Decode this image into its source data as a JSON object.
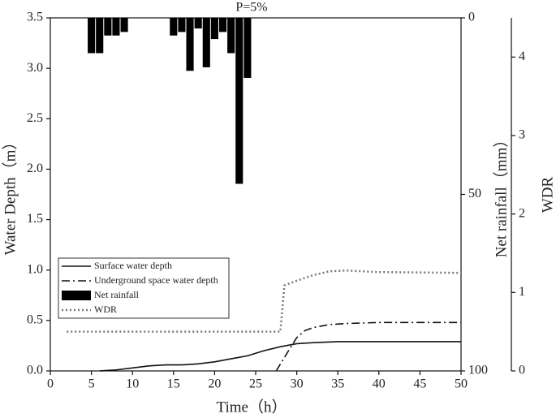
{
  "chart_data": {
    "type": "line",
    "title": "P=5%",
    "x_label": "Time（h）",
    "y_label": "Water Depth（m）",
    "y2_label": "Net rainfall（mm）",
    "y3_label": "WDR",
    "xlim": [
      0,
      50
    ],
    "xticks": [
      0,
      5,
      10,
      15,
      20,
      25,
      30,
      35,
      40,
      45,
      50
    ],
    "ylim": [
      0,
      3.5
    ],
    "yticks": [
      {
        "value": 0,
        "label": "0.0"
      },
      0.5,
      {
        "value": 1,
        "label": "1.0"
      },
      1.5,
      {
        "value": 2,
        "label": "2.0"
      },
      2.5,
      {
        "value": 3,
        "label": "3.0"
      },
      3.5
    ],
    "y2lim": [
      0,
      100
    ],
    "y2ticks": [
      0,
      50,
      100
    ],
    "y2_inverted": true,
    "y3lim": [
      0,
      4.5
    ],
    "y3ticks": [
      0,
      1,
      2,
      3,
      4
    ],
    "series": [
      {
        "name": "Surface water depth",
        "type": "line",
        "dash": "solid",
        "color": "#111111",
        "x": [
          6,
          8,
          10,
          12,
          14,
          16,
          18,
          20,
          22,
          24,
          26,
          28,
          30,
          32,
          35,
          40,
          50
        ],
        "values": [
          0,
          0.01,
          0.03,
          0.05,
          0.06,
          0.06,
          0.07,
          0.09,
          0.12,
          0.15,
          0.2,
          0.24,
          0.27,
          0.28,
          0.29,
          0.29,
          0.29
        ]
      },
      {
        "name": "Underground space water depth",
        "type": "line",
        "dash": "dashdot",
        "color": "#111111",
        "x": [
          27.5,
          29,
          30,
          31,
          32,
          34,
          36,
          40,
          50
        ],
        "values": [
          0,
          0.2,
          0.33,
          0.4,
          0.43,
          0.46,
          0.47,
          0.48,
          0.48
        ]
      },
      {
        "name": "Net rainfall",
        "type": "bar",
        "axis": "y2",
        "color": "#000000",
        "x": [
          5,
          6,
          7,
          8,
          9,
          15,
          16,
          17,
          18,
          19,
          20,
          21,
          22,
          23,
          24
        ],
        "values": [
          10,
          10,
          5,
          5,
          4,
          5,
          4,
          15,
          3,
          14,
          6,
          4,
          10,
          47,
          17
        ]
      },
      {
        "name": "WDR",
        "type": "line",
        "axis": "y3",
        "dash": "dot",
        "color": "#777777",
        "x": [
          2,
          28,
          28.5,
          30,
          32,
          34,
          36,
          40,
          50
        ],
        "values": [
          0.5,
          0.5,
          1.09,
          1.15,
          1.22,
          1.27,
          1.28,
          1.26,
          1.25
        ]
      }
    ]
  }
}
